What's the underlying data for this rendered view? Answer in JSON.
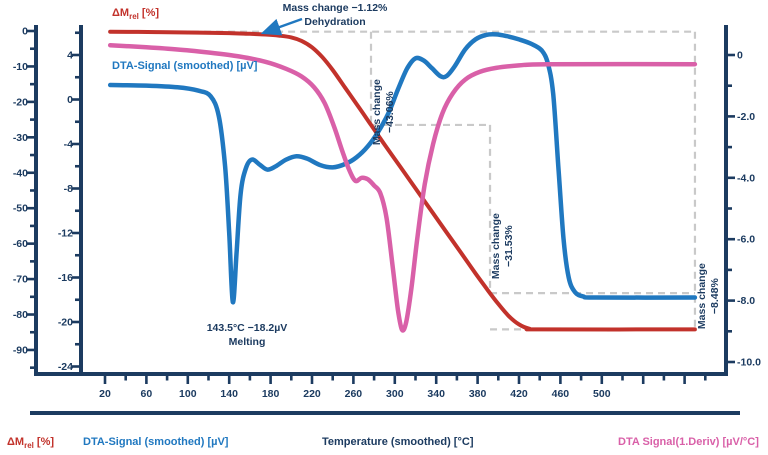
{
  "colors": {
    "navy": "#1c3b60",
    "red": "#c2322b",
    "blue": "#2078c0",
    "pink": "#d960a8",
    "dash": "#c9c9c9",
    "background": "#ffffff"
  },
  "legend": {
    "mass": {
      "prefix": "ΔM",
      "sub": "rel",
      "unit": " [%]"
    },
    "dta": "DTA-Signal (smoothed) [µV]",
    "temperature": "Temperature (smoothed) [°C]",
    "deriv": "DTA Signal(1.Deriv) [µV/°C]"
  },
  "inplot_labels": {
    "mass": {
      "prefix": "ΔM",
      "sub": "rel",
      "unit": " [%]"
    },
    "dta": "DTA-Signal (smoothed) [µV]"
  },
  "annotations": {
    "dehydration": {
      "line1": "Mass change −1.12%",
      "line2": "Dehydration"
    },
    "melting": {
      "line1": "143.5°C −18.2µV",
      "line2": "Melting"
    },
    "step1": {
      "line1": "Mass change",
      "line2": "−43.06%"
    },
    "step2": {
      "line1": "Mass change",
      "line2": "−31.53%"
    },
    "step3": {
      "line1": "Mass change",
      "line2": "−8.48%"
    }
  },
  "chart_data": {
    "type": "line",
    "x_axis": {
      "label": "Temperature (smoothed) [°C]",
      "range_c": [
        20,
        620
      ],
      "major_tick_step_c": 40,
      "labeled_ticks": [
        20,
        60,
        100,
        140,
        180,
        220,
        260,
        300,
        340,
        380,
        420,
        460,
        500
      ]
    },
    "y_axes": {
      "mass": {
        "label": "ΔM_rel [%]",
        "side": "left-outer",
        "ticks": [
          0,
          -10,
          -20,
          -30,
          -40,
          -50,
          -60,
          -70,
          -80,
          -90
        ]
      },
      "dta": {
        "label": "DTA-Signal (smoothed) [µV]",
        "side": "left-inner",
        "ticks": [
          4,
          0,
          -4,
          -8,
          -12,
          -16,
          -20,
          -24
        ]
      },
      "deriv": {
        "label": "DTA Signal(1.Deriv) [µV/°C]",
        "side": "right",
        "ticks": [
          0,
          -2,
          -4,
          -6,
          -8,
          -10
        ]
      }
    },
    "mass_steps_percent": [
      -1.12,
      -43.06,
      -31.53,
      -8.48
    ],
    "step_boundaries_c": [
      277,
      392,
      590
    ],
    "series": [
      {
        "name": "ΔM_rel [%]",
        "axis": "mass",
        "color": "red",
        "points": [
          [
            25,
            -0.2
          ],
          [
            70,
            -0.3
          ],
          [
            110,
            -0.45
          ],
          [
            140,
            -0.6
          ],
          [
            160,
            -0.8
          ],
          [
            175,
            -1.0
          ],
          [
            188,
            -1.3
          ],
          [
            200,
            -1.8
          ],
          [
            210,
            -2.8
          ],
          [
            220,
            -4.6
          ],
          [
            230,
            -7.4
          ],
          [
            240,
            -11
          ],
          [
            252,
            -16
          ],
          [
            264,
            -21
          ],
          [
            277,
            -26.5
          ],
          [
            290,
            -32
          ],
          [
            305,
            -38.2
          ],
          [
            320,
            -44.4
          ],
          [
            335,
            -50.6
          ],
          [
            350,
            -56.8
          ],
          [
            365,
            -63
          ],
          [
            378,
            -68.4
          ],
          [
            390,
            -73.2
          ],
          [
            400,
            -77
          ],
          [
            410,
            -80.4
          ],
          [
            420,
            -82.8
          ],
          [
            430,
            -84
          ],
          [
            442,
            -84.19
          ],
          [
            590,
            -84.19
          ]
        ]
      },
      {
        "name": "DTA-Signal (smoothed) [µV]",
        "axis": "dta",
        "color": "blue",
        "points": [
          [
            25,
            1.3
          ],
          [
            60,
            1.25
          ],
          [
            90,
            1.1
          ],
          [
            110,
            0.8
          ],
          [
            122,
            0.3
          ],
          [
            130,
            -1.5
          ],
          [
            136,
            -6
          ],
          [
            140,
            -12
          ],
          [
            143.5,
            -18.2
          ],
          [
            147,
            -14
          ],
          [
            151,
            -8.5
          ],
          [
            156,
            -6.2
          ],
          [
            162,
            -5.4
          ],
          [
            170,
            -5.9
          ],
          [
            177,
            -6.3
          ],
          [
            185,
            -6.0
          ],
          [
            195,
            -5.4
          ],
          [
            205,
            -5.1
          ],
          [
            215,
            -5.3
          ],
          [
            228,
            -5.9
          ],
          [
            240,
            -6.1
          ],
          [
            252,
            -5.8
          ],
          [
            263,
            -5.2
          ],
          [
            274,
            -4.2
          ],
          [
            284,
            -2.9
          ],
          [
            294,
            -1.2
          ],
          [
            303,
            0.9
          ],
          [
            312,
            2.8
          ],
          [
            320,
            3.7
          ],
          [
            328,
            3.5
          ],
          [
            336,
            2.8
          ],
          [
            344,
            2.1
          ],
          [
            350,
            2.1
          ],
          [
            358,
            3.0
          ],
          [
            368,
            4.5
          ],
          [
            378,
            5.4
          ],
          [
            388,
            5.8
          ],
          [
            398,
            5.85
          ],
          [
            408,
            5.7
          ],
          [
            420,
            5.4
          ],
          [
            432,
            5.0
          ],
          [
            442,
            4.4
          ],
          [
            448,
            3.2
          ],
          [
            453,
            0.5
          ],
          [
            458,
            -6
          ],
          [
            463,
            -12.5
          ],
          [
            468,
            -16
          ],
          [
            474,
            -17.3
          ],
          [
            482,
            -17.7
          ],
          [
            495,
            -17.8
          ],
          [
            590,
            -17.8
          ]
        ]
      },
      {
        "name": "DTA Signal(1.Deriv) [µV/°C]",
        "axis": "deriv",
        "color": "pink",
        "points": [
          [
            25,
            0.32
          ],
          [
            60,
            0.25
          ],
          [
            90,
            0.18
          ],
          [
            120,
            0.08
          ],
          [
            150,
            -0.05
          ],
          [
            175,
            -0.22
          ],
          [
            195,
            -0.45
          ],
          [
            210,
            -0.7
          ],
          [
            222,
            -1.05
          ],
          [
            232,
            -1.55
          ],
          [
            241,
            -2.3
          ],
          [
            249,
            -3.1
          ],
          [
            256,
            -3.75
          ],
          [
            262,
            -4.1
          ],
          [
            268,
            -4.0
          ],
          [
            274,
            -4.05
          ],
          [
            280,
            -4.25
          ],
          [
            286,
            -4.5
          ],
          [
            292,
            -5.3
          ],
          [
            298,
            -6.9
          ],
          [
            303,
            -8.3
          ],
          [
            307,
            -8.95
          ],
          [
            311,
            -8.7
          ],
          [
            316,
            -7.6
          ],
          [
            322,
            -5.9
          ],
          [
            329,
            -4.2
          ],
          [
            337,
            -2.9
          ],
          [
            346,
            -1.9
          ],
          [
            356,
            -1.25
          ],
          [
            368,
            -0.8
          ],
          [
            382,
            -0.55
          ],
          [
            398,
            -0.42
          ],
          [
            420,
            -0.34
          ],
          [
            450,
            -0.3
          ],
          [
            590,
            -0.3
          ]
        ]
      }
    ]
  }
}
